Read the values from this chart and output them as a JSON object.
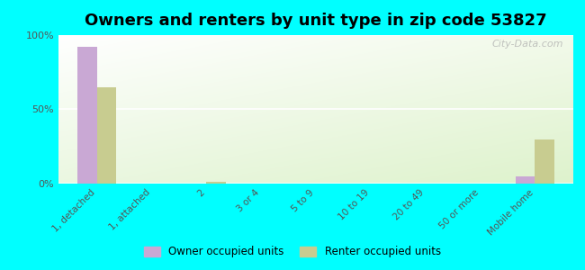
{
  "title": "Owners and renters by unit type in zip code 53827",
  "categories": [
    "1, detached",
    "1, attached",
    "2",
    "3 or 4",
    "5 to 9",
    "10 to 19",
    "20 to 49",
    "50 or more",
    "Mobile home"
  ],
  "owner_values": [
    92,
    0,
    0,
    0,
    0,
    0,
    0,
    0,
    5
  ],
  "renter_values": [
    65,
    0,
    1,
    0,
    0,
    0,
    0,
    0,
    30
  ],
  "owner_color": "#c9a8d4",
  "renter_color": "#c8cc90",
  "background_color": "#00ffff",
  "bar_width": 0.35,
  "ylim": [
    0,
    100
  ],
  "yticks": [
    0,
    50,
    100
  ],
  "ytick_labels": [
    "0%",
    "50%",
    "100%"
  ],
  "title_fontsize": 13,
  "legend_labels": [
    "Owner occupied units",
    "Renter occupied units"
  ],
  "watermark": "City-Data.com"
}
